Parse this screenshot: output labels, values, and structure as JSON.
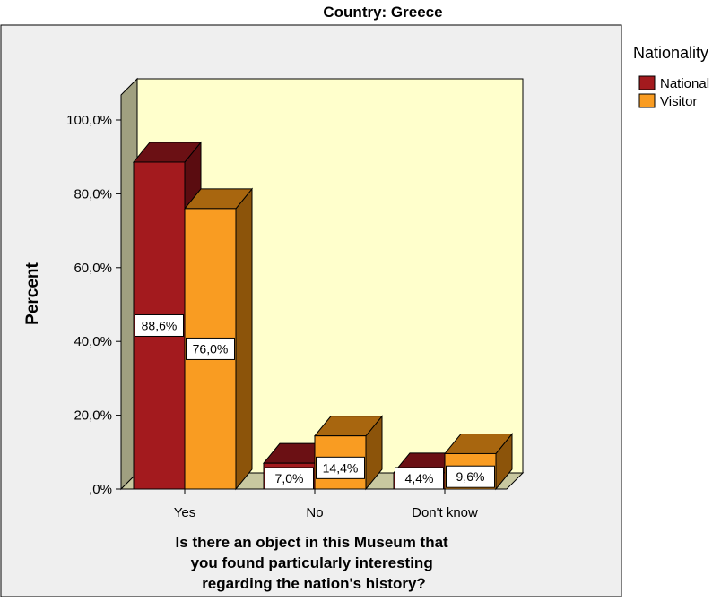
{
  "chart_data": {
    "type": "bar",
    "title": "Country: Greece",
    "ylabel": "Percent",
    "xlabel_lines": [
      "Is there an object in this Museum that",
      "you found particularly interesting",
      "regarding the nation's history?"
    ],
    "categories": [
      "Yes",
      "No",
      "Don't know"
    ],
    "series": [
      {
        "name": "National",
        "values": [
          88.6,
          7.0,
          4.4
        ],
        "labels": [
          "88,6%",
          "7,0%",
          "4,4%"
        ],
        "color": "#a31a1e",
        "top_color": "#6b1014",
        "side_color": "#5a0c10"
      },
      {
        "name": "Visitor",
        "values": [
          76.0,
          14.4,
          9.6
        ],
        "labels": [
          "76,0%",
          "14,4%",
          "9,6%"
        ],
        "color": "#f99c22",
        "top_color": "#a8660f",
        "side_color": "#8c540a"
      }
    ],
    "ylim": [
      0,
      100
    ],
    "yticks": [
      0,
      20,
      40,
      60,
      80,
      100
    ],
    "ytick_labels": [
      ",0%",
      "20,0%",
      "40,0%",
      "60,0%",
      "80,0%",
      "100,0%"
    ],
    "legend": {
      "title": "Nationality",
      "position": "top-right"
    },
    "grid": false,
    "colors": {
      "wall": "#ffffcc",
      "frame_bg": "#efefef",
      "side_wall": "#a0a080",
      "floor": "#c8c8a0"
    }
  }
}
